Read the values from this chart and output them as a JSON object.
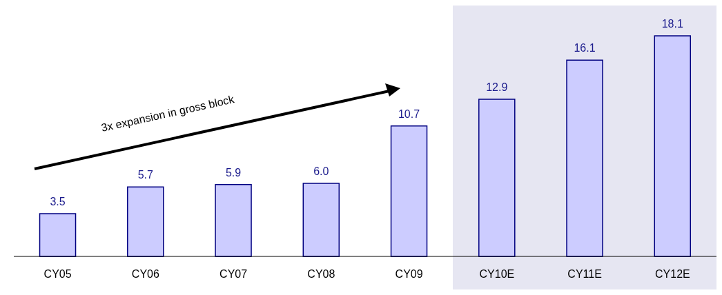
{
  "chart_data": {
    "type": "bar",
    "categories": [
      "CY05",
      "CY06",
      "CY07",
      "CY08",
      "CY09",
      "CY10E",
      "CY11E",
      "CY12E"
    ],
    "values": [
      3.5,
      5.7,
      5.9,
      6.0,
      10.7,
      12.9,
      16.1,
      18.1
    ],
    "color": "#ccccff",
    "value_labels": [
      "3.5",
      "5.7",
      "5.9",
      "6.0",
      "10.7",
      "12.9",
      "16.1",
      "18.1"
    ],
    "grid": false,
    "legend": false,
    "bands": [
      {
        "axis": "x",
        "from": "CY10E",
        "to": "CY12E",
        "color": "#e6e6f2"
      }
    ],
    "annotations": [
      "3x expansion in gross block"
    ]
  }
}
